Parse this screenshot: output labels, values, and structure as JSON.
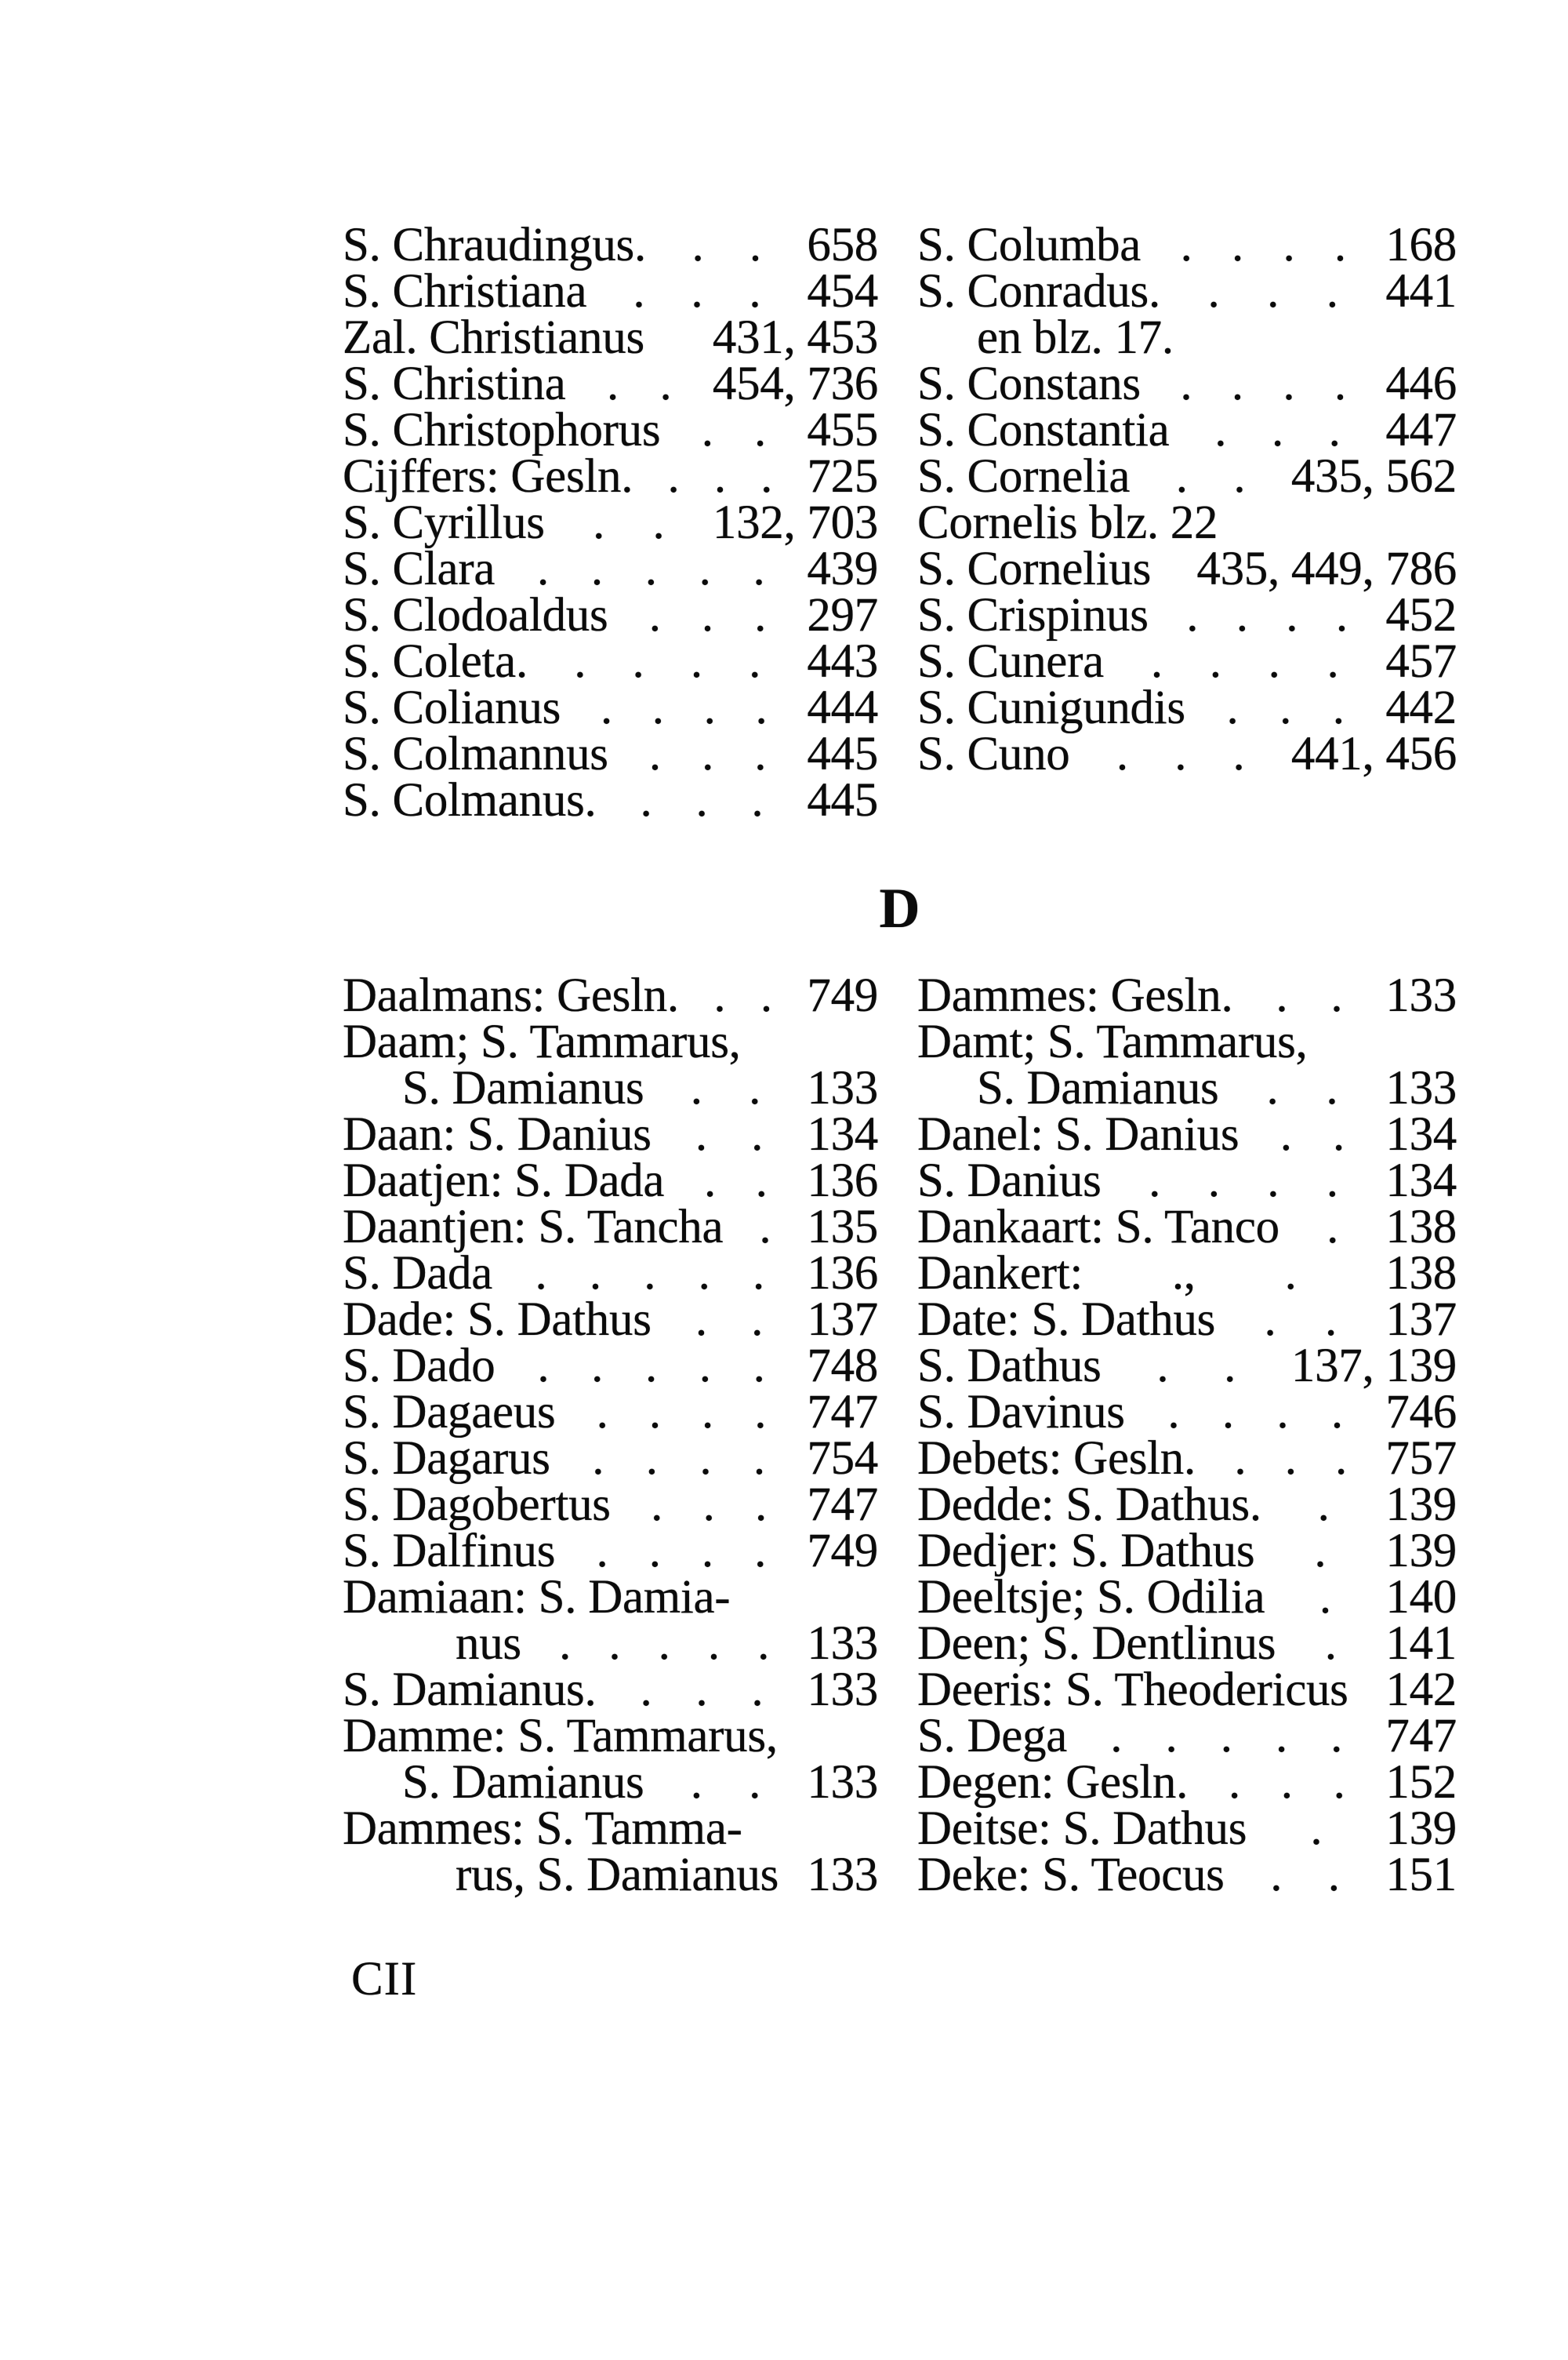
{
  "page": {
    "number": "CII",
    "heading": "D"
  },
  "index": {
    "top_left": [
      {
        "text": "S. Chraudingus.",
        "leader": [
          ".",
          "."
        ],
        "page": "658"
      },
      {
        "text": "S. Christiana",
        "leader": [
          ".",
          ".",
          "."
        ],
        "page": "454"
      },
      {
        "text": "Zal. Christianus",
        "page": "431, 453"
      },
      {
        "text": "S. Christina",
        "leader": [
          ".",
          "."
        ],
        "page": "454, 736"
      },
      {
        "text": "S. Christophorus",
        "leader": [
          ".",
          "."
        ],
        "page": "455"
      },
      {
        "text": "Cijffers: Gesln.",
        "leader": [
          ".",
          ".",
          "."
        ],
        "page": "725"
      },
      {
        "text": "S. Cyrillus",
        "leader": [
          ".",
          "."
        ],
        "page": "132, 703"
      },
      {
        "text": "S. Clara",
        "leader": [
          ".",
          ".",
          ".",
          ".",
          "."
        ],
        "page": "439"
      },
      {
        "text": "S. Clodoaldus",
        "leader": [
          ".",
          ".",
          "."
        ],
        "page": "297"
      },
      {
        "text": "S. Coleta.",
        "leader": [
          ".",
          ".",
          ".",
          "."
        ],
        "page": "443"
      },
      {
        "text": "S. Colianus",
        "leader": [
          ".",
          ".",
          ".",
          "."
        ],
        "page": "444"
      },
      {
        "text": "S. Colmannus",
        "leader": [
          ".",
          ".",
          "."
        ],
        "page": "445"
      },
      {
        "text": "S. Colmanus.",
        "leader": [
          ".",
          ".",
          "."
        ],
        "page": "445"
      }
    ],
    "top_right": [
      {
        "text": "S. Columba",
        "leader": [
          ".",
          ".",
          ".",
          "."
        ],
        "page": "168"
      },
      {
        "text": "S. Conradus.",
        "leader": [
          ".",
          ".",
          "."
        ],
        "page": "441"
      },
      {
        "text": "en blz. 17.",
        "indent": 1
      },
      {
        "text": "S. Constans",
        "leader": [
          ".",
          ".",
          ".",
          "."
        ],
        "page": "446"
      },
      {
        "text": "S. Constantia",
        "leader": [
          ".",
          ".",
          "."
        ],
        "page": "447"
      },
      {
        "text": "S. Cornelia",
        "leader": [
          ".",
          "."
        ],
        "page": "435, 562"
      },
      {
        "text": "Cornelis blz. 22"
      },
      {
        "text": "S. Cornelius",
        "page": "435, 449, 786"
      },
      {
        "text": "S. Crispinus",
        "leader": [
          ".",
          ".",
          ".",
          "."
        ],
        "page": "452"
      },
      {
        "text": "S. Cunera",
        "leader": [
          ".",
          ".",
          ".",
          "."
        ],
        "page": "457"
      },
      {
        "text": "S. Cunigundis",
        "leader": [
          ".",
          ".",
          "."
        ],
        "page": "442"
      },
      {
        "text": "S. Cuno",
        "leader": [
          ".",
          ".",
          "."
        ],
        "page": "441, 456"
      }
    ],
    "bottom_left": [
      {
        "text": "Daalmans: Gesln.",
        "leader": [
          ".",
          "."
        ],
        "page": "749"
      },
      {
        "text": "Daam; S. Tammarus,"
      },
      {
        "text": "S. Damianus",
        "leader": [
          ".",
          "."
        ],
        "page": "133",
        "indent": 1
      },
      {
        "text": "Daan: S. Danius",
        "leader": [
          ".",
          "."
        ],
        "page": "134"
      },
      {
        "text": "Daatjen: S. Dada",
        "leader": [
          ".",
          "."
        ],
        "page": "136"
      },
      {
        "text": "Daantjen: S. Tancha",
        "leader": [
          "."
        ],
        "page": "135"
      },
      {
        "text": "S. Dada",
        "leader": [
          ".",
          ".",
          ".",
          ".",
          "."
        ],
        "page": "136"
      },
      {
        "text": "Dade: S. Dathus",
        "leader": [
          ".",
          "."
        ],
        "page": "137"
      },
      {
        "text": "S. Dado",
        "leader": [
          ".",
          ".",
          ".",
          ".",
          "."
        ],
        "page": "748"
      },
      {
        "text": "S. Dagaeus",
        "leader": [
          ".",
          ".",
          ".",
          "."
        ],
        "page": "747"
      },
      {
        "text": "S. Dagarus",
        "leader": [
          ".",
          ".",
          ".",
          "."
        ],
        "page": "754"
      },
      {
        "text": "S. Dagobertus",
        "leader": [
          ".",
          ".",
          "."
        ],
        "page": "747"
      },
      {
        "text": "S. Dalfinus",
        "leader": [
          ".",
          ".",
          ".",
          "."
        ],
        "page": "749"
      },
      {
        "text": "Damiaan: S. Damia-"
      },
      {
        "text": "nus",
        "leader": [
          ".",
          ".",
          ".",
          ".",
          "."
        ],
        "page": "133",
        "indent": 2
      },
      {
        "text": "S. Damianus.",
        "leader": [
          ".",
          ".",
          "."
        ],
        "page": "133"
      },
      {
        "text": "Damme: S. Tammarus,"
      },
      {
        "text": "S. Damianus",
        "leader": [
          ".",
          "."
        ],
        "page": "133",
        "indent": 1
      },
      {
        "text": "Dammes: S. Tamma-"
      },
      {
        "text": "rus, S. Damianus",
        "page": "133",
        "indent": 2
      }
    ],
    "bottom_right": [
      {
        "text": "Dammes: Gesln.",
        "leader": [
          ".",
          "."
        ],
        "page": "133"
      },
      {
        "text": "Damt; S. Tammarus,"
      },
      {
        "text": "S. Damianus",
        "leader": [
          ".",
          "."
        ],
        "page": "133",
        "indent": 1
      },
      {
        "text": "Danel: S. Danius",
        "leader": [
          ".",
          "."
        ],
        "page": "134"
      },
      {
        "text": "S. Danius",
        "leader": [
          ".",
          ".",
          ".",
          "."
        ],
        "page": "134"
      },
      {
        "text": "Dankaart: S. Tanco",
        "leader": [
          "."
        ],
        "page": "138"
      },
      {
        "text": "Dankert:",
        "leader": [
          ".,",
          "."
        ],
        "page": "138"
      },
      {
        "text": "Date: S. Dathus",
        "leader": [
          ".",
          "."
        ],
        "page": "137"
      },
      {
        "text": "S. Dathus",
        "leader": [
          ".",
          "."
        ],
        "page": "137, 139"
      },
      {
        "text": "S. Davinus",
        "leader": [
          ".",
          ".",
          ".",
          "."
        ],
        "page": "746"
      },
      {
        "text": "Debets: Gesln.",
        "leader": [
          ".",
          ".",
          "."
        ],
        "page": "757"
      },
      {
        "text": "Dedde: S. Dathus.",
        "leader": [
          "."
        ],
        "page": "139"
      },
      {
        "text": "Dedjer: S. Dathus",
        "leader": [
          "."
        ],
        "page": "139"
      },
      {
        "text": "Deeltsje; S. Odilia",
        "leader": [
          "."
        ],
        "page": "140"
      },
      {
        "text": "Deen; S. Dentlinus",
        "leader": [
          "."
        ],
        "page": "141"
      },
      {
        "text": "Deeris: S. Theodericus",
        "page": "142"
      },
      {
        "text": "S. Dega",
        "leader": [
          ".",
          ".",
          ".",
          ".",
          "."
        ],
        "page": "747"
      },
      {
        "text": "Degen: Gesln.",
        "leader": [
          ".",
          ".",
          "."
        ],
        "page": "152"
      },
      {
        "text": "Deitse: S. Dathus",
        "leader": [
          "."
        ],
        "page": "139"
      },
      {
        "text": "Deke: S. Teocus",
        "leader": [
          ".",
          "."
        ],
        "page": "151"
      }
    ]
  }
}
